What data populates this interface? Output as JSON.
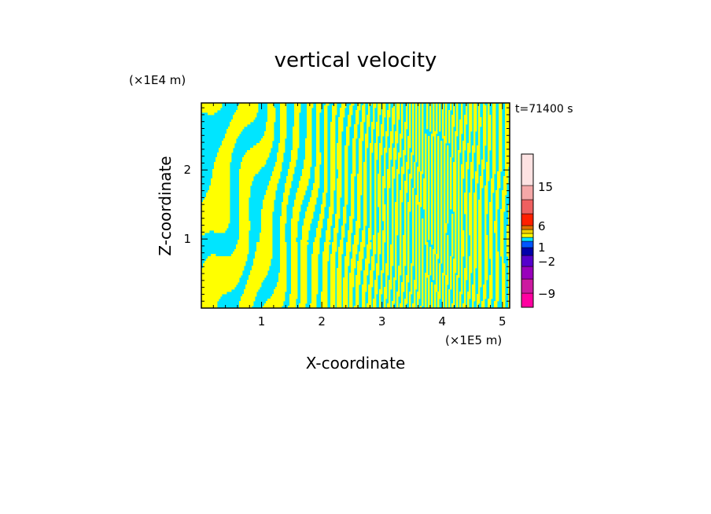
{
  "chart_data": {
    "type": "heatmap",
    "title": "vertical velocity",
    "xlabel": "X-coordinate",
    "ylabel": "Z-coordinate",
    "x_unit": "(×1E5 m)",
    "y_unit": "(×1E4 m)",
    "time_label": "t=71400 s",
    "xlim": [
      0,
      5.12
    ],
    "ylim": [
      0,
      2.97
    ],
    "x_ticks": [
      1,
      2,
      3,
      4,
      5
    ],
    "y_ticks": [
      1,
      2
    ],
    "x_tick_labels": [
      "1",
      "2",
      "3",
      "4",
      "5"
    ],
    "y_tick_labels": [
      "1",
      "2"
    ],
    "field_colors": {
      "positive": "#ffff00",
      "negative": "#00e5ff"
    },
    "colorbar": {
      "levels": [
        {
          "color": "#ff00a0"
        },
        {
          "color": "#cc1aa0"
        },
        {
          "color": "#9900bb"
        },
        {
          "color": "#5500cc"
        },
        {
          "color": "#0000aa"
        },
        {
          "color": "#0055ff"
        },
        {
          "color": "#00e5ff"
        },
        {
          "color": "#ffff00"
        },
        {
          "color": "#f0d000"
        },
        {
          "color": "#e07000"
        },
        {
          "color": "#ff2000"
        },
        {
          "color": "#ee6060"
        },
        {
          "color": "#f4a8a8"
        },
        {
          "color": "#fde2e2"
        }
      ],
      "labels": [
        {
          "text": "15",
          "value": 15
        },
        {
          "text": "6",
          "value": 6
        },
        {
          "text": "1",
          "value": 1
        },
        {
          "text": "−2",
          "value": -2
        },
        {
          "text": "−9",
          "value": -9
        }
      ]
    }
  }
}
